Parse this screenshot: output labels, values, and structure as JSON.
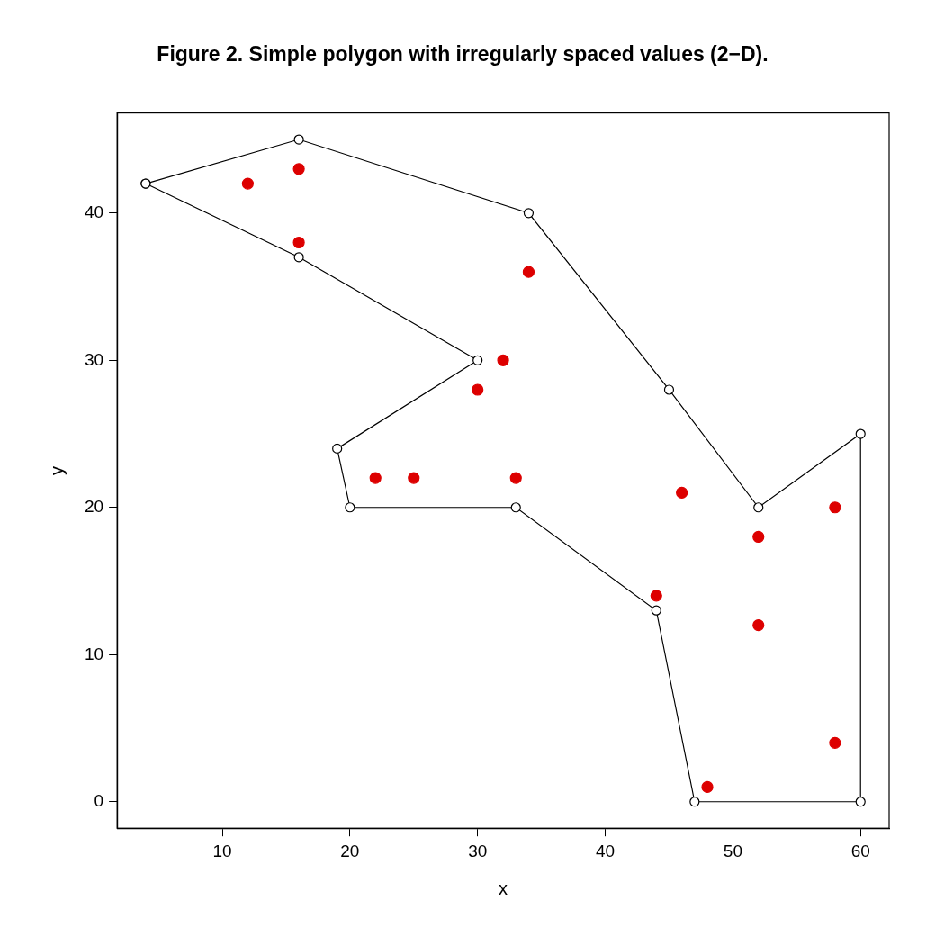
{
  "chart_data": {
    "type": "scatter",
    "title": "Figure 2. Simple polygon with irregularly spaced values (2−D).",
    "x_label": "x",
    "y_label": "y",
    "xlim": [
      1.76,
      62.24
    ],
    "ylim": [
      -1.8,
      46.8
    ],
    "xticks": [
      10,
      20,
      30,
      40,
      50,
      60
    ],
    "yticks": [
      0,
      10,
      20,
      30,
      40
    ],
    "grid": false,
    "series": [
      {
        "type": "line",
        "color": "#000000",
        "marker": "circle_open",
        "line_style": "solid",
        "x": [
          4,
          16,
          34,
          45,
          52,
          60,
          60,
          47,
          44,
          33,
          20,
          19,
          30,
          16,
          4
        ],
        "y": [
          42,
          45,
          40,
          28,
          20,
          25,
          0,
          0,
          13,
          20,
          20,
          24,
          30,
          37,
          42
        ]
      },
      {
        "type": "scatter",
        "color": "#dd0000",
        "marker": "circle",
        "x": [
          12,
          16,
          16,
          34,
          32,
          30,
          22,
          25,
          33,
          46,
          52,
          58,
          52,
          44,
          58,
          48
        ],
        "y": [
          42,
          43,
          38,
          36,
          30,
          28,
          22,
          22,
          22,
          21,
          18,
          20,
          12,
          14,
          4,
          1
        ]
      }
    ]
  }
}
